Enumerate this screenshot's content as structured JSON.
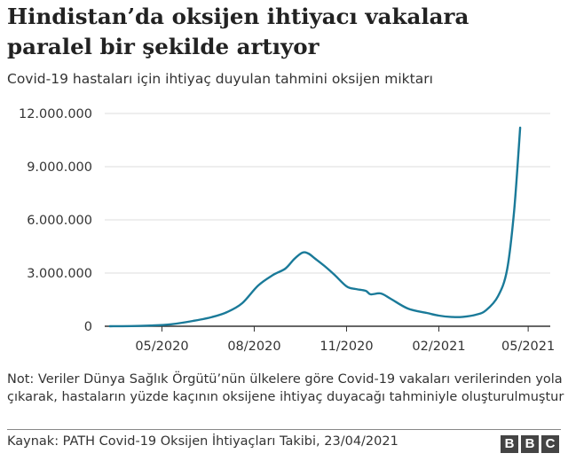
{
  "header": {
    "title": "Hindistan’da oksijen ihtiyacı vakalara paralel bir şekilde artıyor",
    "subtitle": "Covid-19 hastaları için ihtiyaç duyulan tahmini oksijen miktarı"
  },
  "note": "Not: Veriler Dünya Sağlık Örgütü’nün ülkelere göre Covid-19 vakaları verilerinden yola çıkarak, hastaların yüzde kaçının oksijene ihtiyaç duyacağı tahminiyle oluşturulmuştur",
  "source": "Kaynak: PATH Covid-19 Oksijen İhtiyaçları Takibi, 23/04/2021",
  "brand": {
    "letters": [
      "B",
      "B",
      "C"
    ]
  },
  "colors": {
    "line": "#1a7a99",
    "grid": "#dddddd",
    "baseline": "#333333"
  },
  "chart_data": {
    "type": "line",
    "title": "Hindistan’da oksijen ihtiyacı vakalara paralel bir şekilde artıyor",
    "subtitle": "Covid-19 hastaları için ihtiyaç duyulan tahmini oksijen miktarı",
    "xlabel": "",
    "ylabel": "",
    "ylim": [
      0,
      12000000
    ],
    "xlim": [
      "2020-03-05",
      "2021-05-23"
    ],
    "y_ticks": [
      0,
      3000000,
      6000000,
      9000000,
      12000000
    ],
    "y_tick_labels": [
      "0",
      "3.000.000",
      "6.000.000",
      "9.000.000",
      "12.000.000"
    ],
    "x_ticks": [
      "2020-05-01",
      "2020-08-01",
      "2020-11-01",
      "2021-02-01",
      "2021-05-01"
    ],
    "x_tick_labels": [
      "05/2020",
      "08/2020",
      "11/2020",
      "02/2021",
      "05/2021"
    ],
    "grid": true,
    "series": [
      {
        "x": [
          "2020-03-10",
          "2020-04-01",
          "2020-04-20",
          "2020-05-10",
          "2020-06-01",
          "2020-06-20",
          "2020-07-05",
          "2020-07-20",
          "2020-08-05",
          "2020-08-20",
          "2020-09-01",
          "2020-09-10",
          "2020-09-18",
          "2020-09-24",
          "2020-10-01",
          "2020-10-10",
          "2020-10-20",
          "2020-11-01",
          "2020-11-10",
          "2020-11-20",
          "2020-11-25",
          "2020-12-05",
          "2020-12-15",
          "2021-01-01",
          "2021-01-20",
          "2021-02-01",
          "2021-02-15",
          "2021-02-25",
          "2021-03-10",
          "2021-03-20",
          "2021-04-01",
          "2021-04-10",
          "2021-04-17",
          "2021-04-23"
        ],
        "y": [
          0,
          10000,
          40000,
          110000,
          300000,
          520000,
          800000,
          1300000,
          2300000,
          2900000,
          3250000,
          3800000,
          4150000,
          4100000,
          3800000,
          3400000,
          2900000,
          2250000,
          2100000,
          2000000,
          1800000,
          1850000,
          1550000,
          1000000,
          750000,
          600000,
          520000,
          530000,
          650000,
          900000,
          1700000,
          3200000,
          6500000,
          11200000
        ]
      }
    ]
  }
}
